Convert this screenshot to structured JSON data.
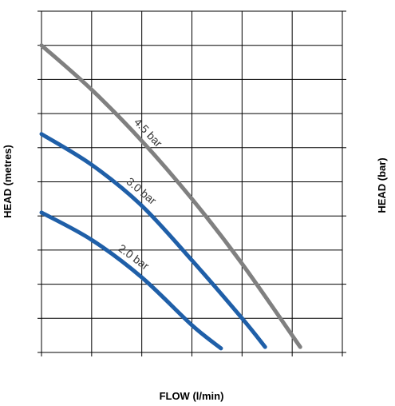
{
  "chart_data": {
    "type": "line",
    "title": "",
    "xlabel": "FLOW (l/min)",
    "ylabel": "HEAD (metres)",
    "y2label": "HEAD (bar)",
    "xlim": [
      0,
      30
    ],
    "ylim": [
      0,
      50
    ],
    "y2lim": [
      0,
      5
    ],
    "grid": true,
    "x_ticks": [
      "0",
      "5",
      "10",
      "15",
      "20",
      "25",
      "30"
    ],
    "y_ticks": [
      "0",
      "5",
      "10",
      "15",
      "20",
      "25",
      "30",
      "35",
      "40",
      "45",
      "50"
    ],
    "y2_ticks": [
      "0",
      "1.0",
      "2.0",
      "3.0",
      "4.0",
      "5.0"
    ],
    "series": [
      {
        "name": "4.5 bar",
        "color": "#808080",
        "x": [
          0,
          5,
          10,
          15,
          20,
          25.8
        ],
        "y": [
          45,
          38.5,
          31,
          22.5,
          13,
          0.8
        ]
      },
      {
        "name": "3.0 bar",
        "color": "#1f5fa8",
        "x": [
          0,
          5,
          10,
          15,
          20,
          22.3
        ],
        "y": [
          32,
          27.5,
          21.5,
          13.5,
          5,
          0.8
        ]
      },
      {
        "name": "2.0 bar",
        "color": "#1f5fa8",
        "x": [
          0,
          5,
          10,
          15,
          17.9
        ],
        "y": [
          20.5,
          16.5,
          11,
          4,
          0.6
        ]
      }
    ]
  }
}
